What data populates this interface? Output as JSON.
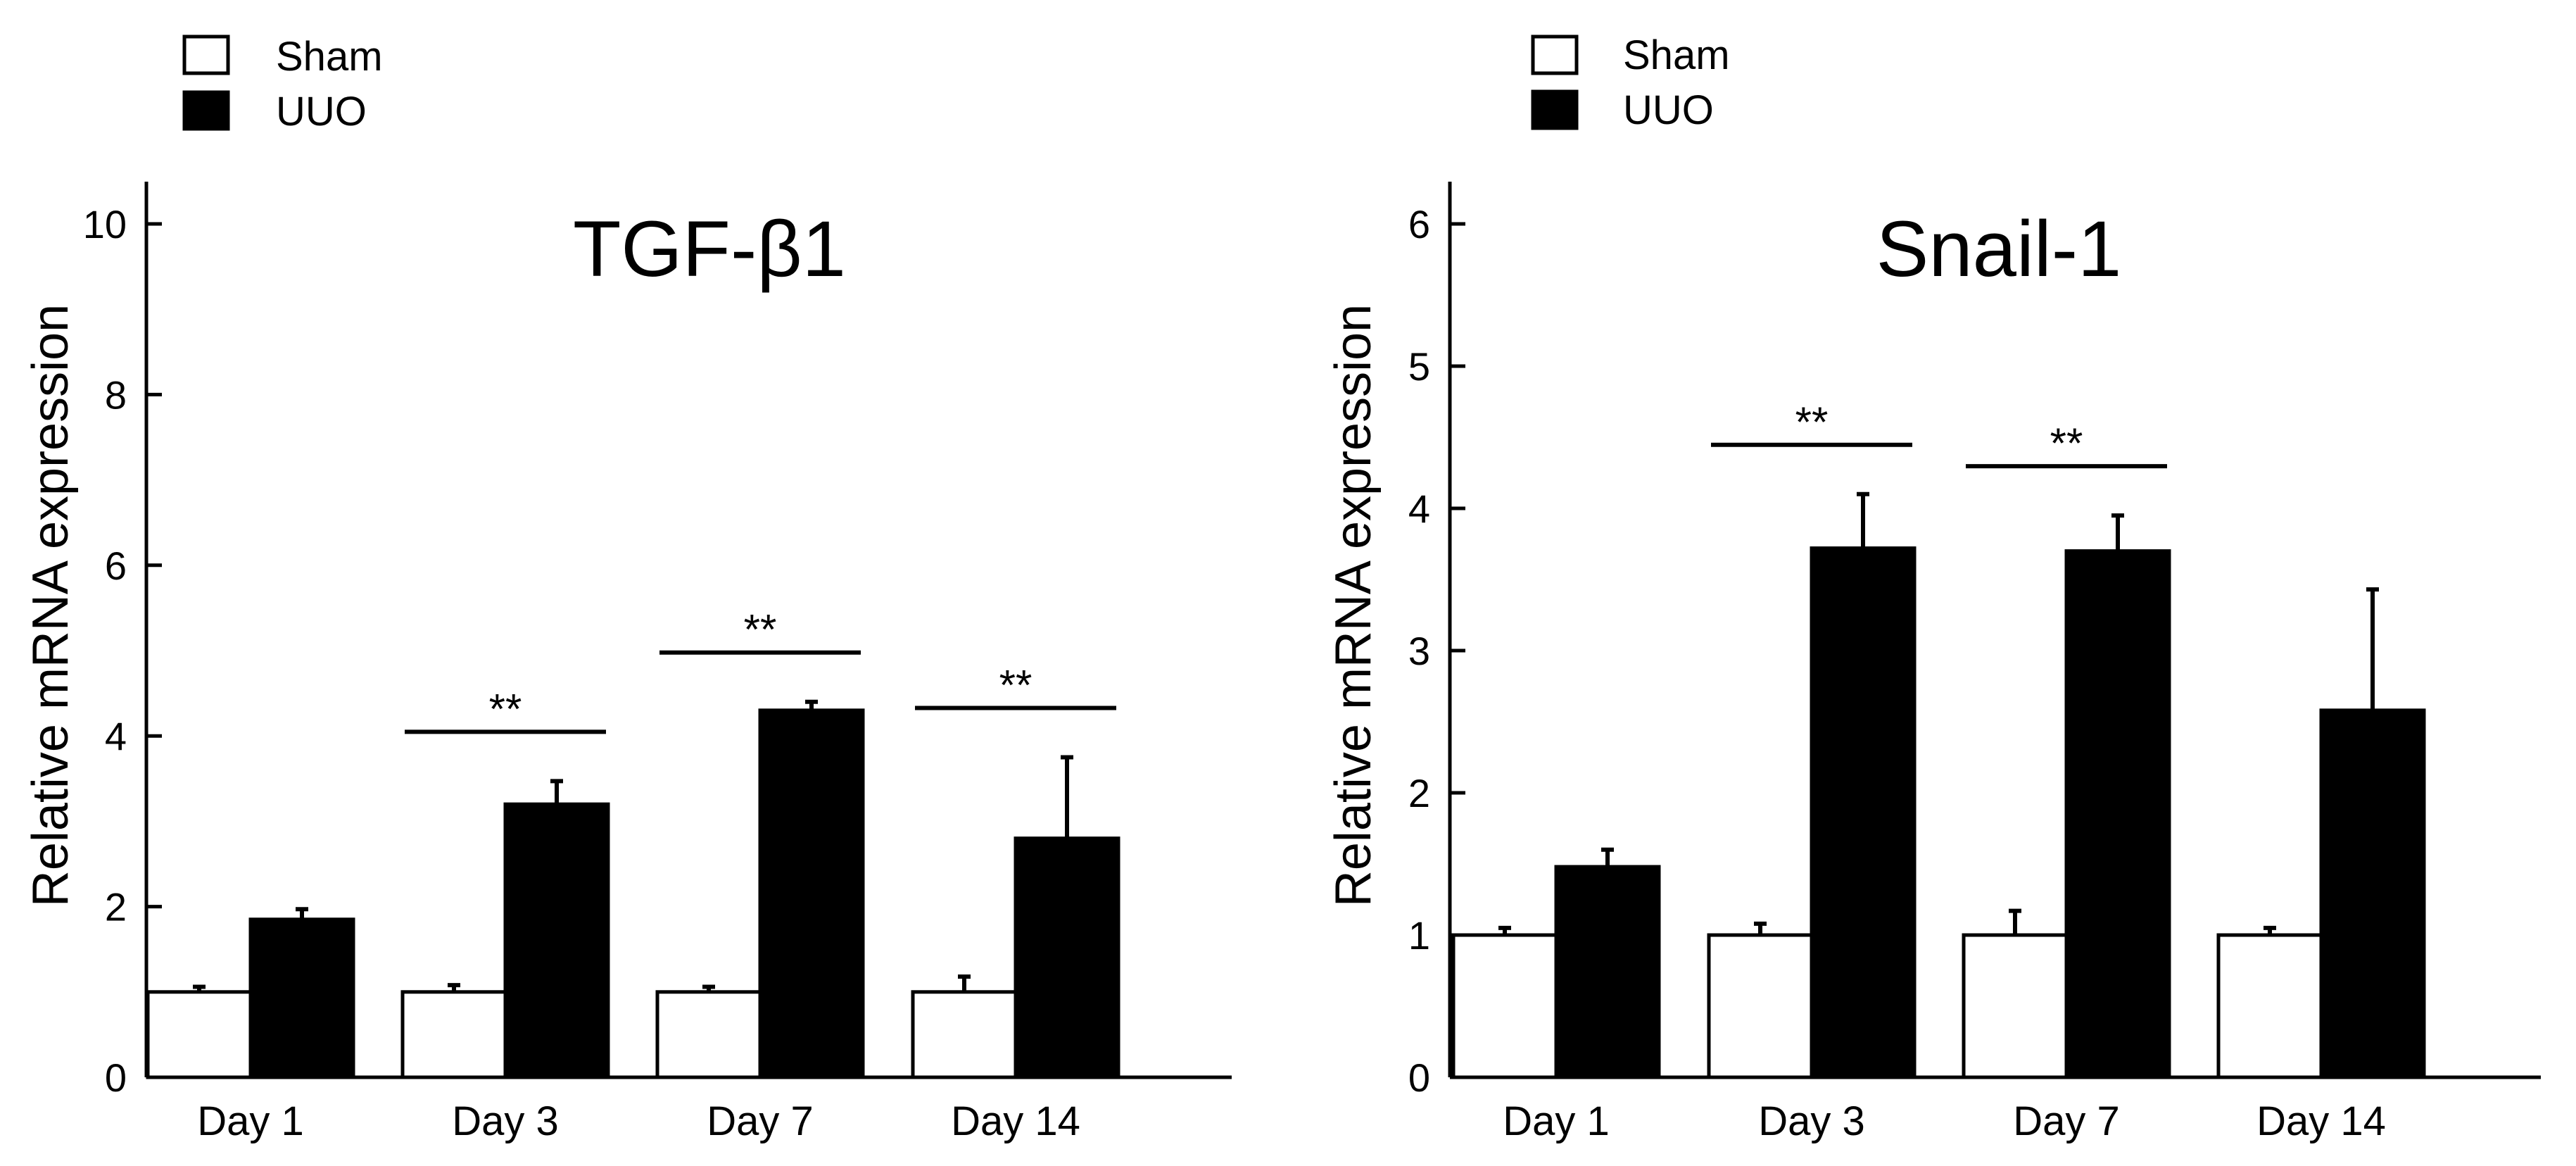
{
  "colors": {
    "sham_fill": "#ffffff",
    "uuo_fill": "#000000",
    "stroke": "#000000",
    "background": "#ffffff"
  },
  "chart_data": [
    {
      "type": "bar",
      "title": "TGF-β1",
      "xlabel": "",
      "ylabel": "Relative mRNA expression",
      "ylim": [
        0,
        10
      ],
      "yticks": [
        0,
        2,
        4,
        6,
        8,
        10
      ],
      "categories": [
        "Day 1",
        "Day 3",
        "Day 7",
        "Day 14"
      ],
      "legend": [
        "Sham",
        "UUO"
      ],
      "legend_position": "top-left",
      "series": [
        {
          "name": "Sham",
          "values": [
            1.0,
            1.0,
            1.0,
            1.0
          ],
          "errors": [
            0.06,
            0.08,
            0.06,
            0.18
          ]
        },
        {
          "name": "UUO",
          "values": [
            1.85,
            3.2,
            4.3,
            2.8
          ],
          "errors": [
            0.12,
            0.27,
            0.1,
            0.95
          ]
        }
      ],
      "significance": [
        {
          "category": "Day 3",
          "label": "**"
        },
        {
          "category": "Day 7",
          "label": "**"
        },
        {
          "category": "Day 14",
          "label": "**"
        }
      ]
    },
    {
      "type": "bar",
      "title": "Snail-1",
      "xlabel": "",
      "ylabel": "Relative mRNA expression",
      "ylim": [
        0,
        6
      ],
      "yticks": [
        0,
        1,
        2,
        3,
        4,
        5,
        6
      ],
      "categories": [
        "Day 1",
        "Day 3",
        "Day 7",
        "Day 14"
      ],
      "legend": [
        "Sham",
        "UUO"
      ],
      "legend_position": "top-left",
      "series": [
        {
          "name": "Sham",
          "values": [
            1.0,
            1.0,
            1.0,
            1.0
          ],
          "errors": [
            0.05,
            0.08,
            0.17,
            0.05
          ]
        },
        {
          "name": "UUO",
          "values": [
            1.48,
            3.72,
            3.7,
            2.58
          ],
          "errors": [
            0.12,
            0.38,
            0.25,
            0.85
          ]
        }
      ],
      "significance": [
        {
          "category": "Day 3",
          "label": "**"
        },
        {
          "category": "Day 7",
          "label": "**"
        }
      ]
    }
  ]
}
